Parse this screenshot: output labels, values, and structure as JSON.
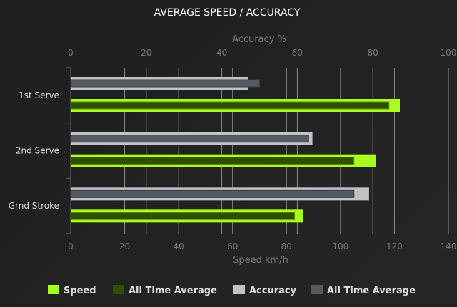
{
  "chart_data": {
    "type": "bar",
    "orientation": "horizontal",
    "title": "AVERAGE SPEED / ACCURACY",
    "categories": [
      "1st Serve",
      "2nd Serve",
      "Grnd Stroke"
    ],
    "speed_axis": {
      "label": "Speed km/h",
      "range": [
        0,
        140
      ],
      "ticks": [
        0,
        20,
        40,
        60,
        80,
        100,
        120,
        140
      ]
    },
    "accuracy_axis": {
      "label": "Accuracy %",
      "range": [
        0,
        100
      ],
      "ticks": [
        0,
        20,
        40,
        60,
        80,
        100
      ]
    },
    "series": [
      {
        "name": "Speed",
        "axis": "speed",
        "color": "#a8ff1e",
        "values": [
          122,
          113,
          86
        ]
      },
      {
        "name": "All Time Average",
        "axis": "speed",
        "color": "#314d00",
        "values": [
          118,
          105,
          83
        ]
      },
      {
        "name": "Accuracy",
        "axis": "accuracy",
        "color": "#bfc3c6",
        "values": [
          47,
          64,
          79
        ]
      },
      {
        "name": "All Time Average",
        "axis": "accuracy",
        "color": "#555a61",
        "values": [
          50,
          63,
          75
        ]
      }
    ],
    "grid": true,
    "legend_position": "bottom"
  }
}
